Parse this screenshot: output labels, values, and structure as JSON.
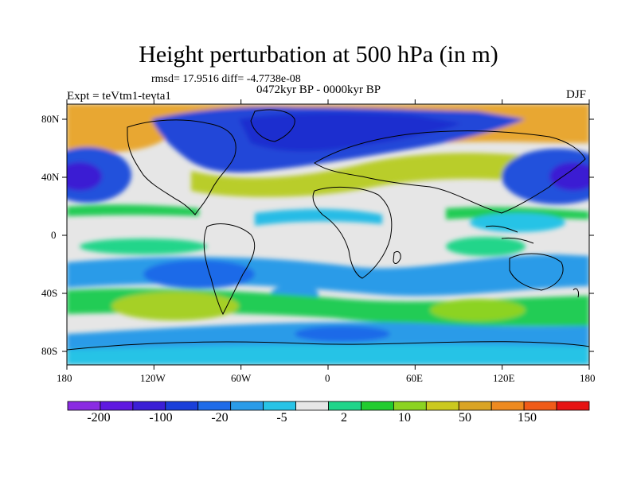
{
  "title": "Height perturbation at 500 hPa (in m)",
  "stats_line": "rmsd= 17.9516 diff= -4.7738e-08",
  "period": "0472kyr BP - 0000kyr BP",
  "experiment": "Expt = teVtm1-tevta1",
  "season": "DJF",
  "map": {
    "projection": "cylindrical equidistant",
    "lon_range": [
      -180,
      180
    ],
    "lat_range": [
      -90,
      90
    ],
    "lat_tick_labels": [
      "80N",
      "40N",
      "0",
      "40S",
      "80S"
    ],
    "lon_tick_labels": [
      "180",
      "120W",
      "60W",
      "0",
      "60E",
      "120E",
      "180"
    ],
    "coastlines": true
  },
  "colorbar": {
    "orientation": "horizontal",
    "labels": [
      "-200",
      "-100",
      "-20",
      "-5",
      "2",
      "10",
      "50",
      "150"
    ],
    "colors": [
      "#8a2be2",
      "#5f19e0",
      "#3b1fd6",
      "#1a3fd9",
      "#1f6be8",
      "#2a9be8",
      "#28c3e6",
      "#e6e6e6",
      "#20d58a",
      "#22cc2f",
      "#8cd321",
      "#cbc91f",
      "#d9a425",
      "#ee8a20",
      "#f05b18",
      "#e61313"
    ]
  },
  "chart_data": {
    "type": "heatmap",
    "title": "Height perturbation at 500 hPa (in m)",
    "variable": "500 hPa height perturbation",
    "units": "m",
    "season": "DJF",
    "experiment": "teVtm1-tevta1",
    "period": "0472kyr BP - 0000kyr BP",
    "rmsd": 17.9516,
    "diff": -4.7738e-08,
    "x_ticks": [
      "180",
      "120W",
      "60W",
      "0",
      "60E",
      "120E",
      "180"
    ],
    "y_ticks": [
      "80N",
      "40N",
      "0",
      "40S",
      "80S"
    ],
    "color_levels": [
      "-200",
      "-100",
      "-20",
      "-5",
      "2",
      "10",
      "50",
      "150"
    ]
  }
}
